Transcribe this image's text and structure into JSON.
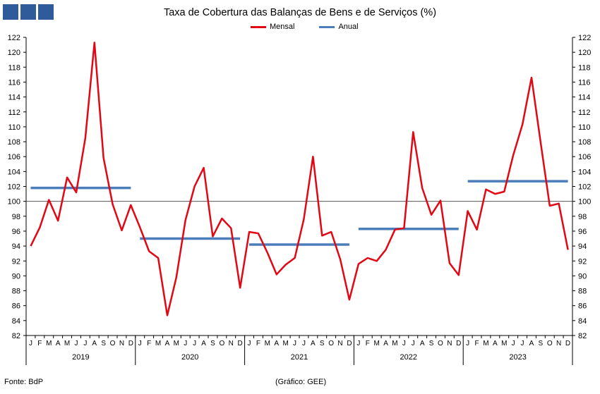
{
  "chart_data": {
    "type": "line",
    "title": "Taxa de Cobertura das Balanças de Bens e de Serviços (%)",
    "ylim": [
      82,
      122
    ],
    "yticks": [
      82,
      84,
      86,
      88,
      90,
      92,
      94,
      96,
      98,
      100,
      102,
      104,
      106,
      108,
      110,
      112,
      114,
      116,
      118,
      120,
      122
    ],
    "reference_line": 100,
    "month_labels": [
      "J",
      "F",
      "M",
      "A",
      "M",
      "J",
      "J",
      "A",
      "S",
      "O",
      "N",
      "D"
    ],
    "years": [
      "2019",
      "2020",
      "2021",
      "2022",
      "2023"
    ],
    "legend_placement": "top-center",
    "series": [
      {
        "name": "Mensal",
        "color": "#e30613",
        "values": [
          94.0,
          96.5,
          100.2,
          97.4,
          103.2,
          101.2,
          108.5,
          121.3,
          105.8,
          99.6,
          96.1,
          99.5,
          96.5,
          93.3,
          92.4,
          84.7,
          89.8,
          97.5,
          102.0,
          104.5,
          95.3,
          97.7,
          96.4,
          88.4,
          95.9,
          95.7,
          93.1,
          90.2,
          91.5,
          92.4,
          97.6,
          106.0,
          95.4,
          95.9,
          92.2,
          86.8,
          91.6,
          92.4,
          92.0,
          93.5,
          96.2,
          96.4,
          109.3,
          101.8,
          98.2,
          100.1,
          91.7,
          90.1,
          98.7,
          96.2,
          101.6,
          101.0,
          101.3,
          106.2,
          110.3,
          116.6,
          107.9,
          99.4,
          99.7,
          93.5
        ]
      },
      {
        "name": "Anual",
        "color": "#4a7ebb",
        "values": [
          101.8,
          95.0,
          94.2,
          96.3,
          102.7
        ]
      }
    ]
  },
  "footer": {
    "source": "Fonte: BdP",
    "credit": "(Gráfico: GEE)"
  }
}
